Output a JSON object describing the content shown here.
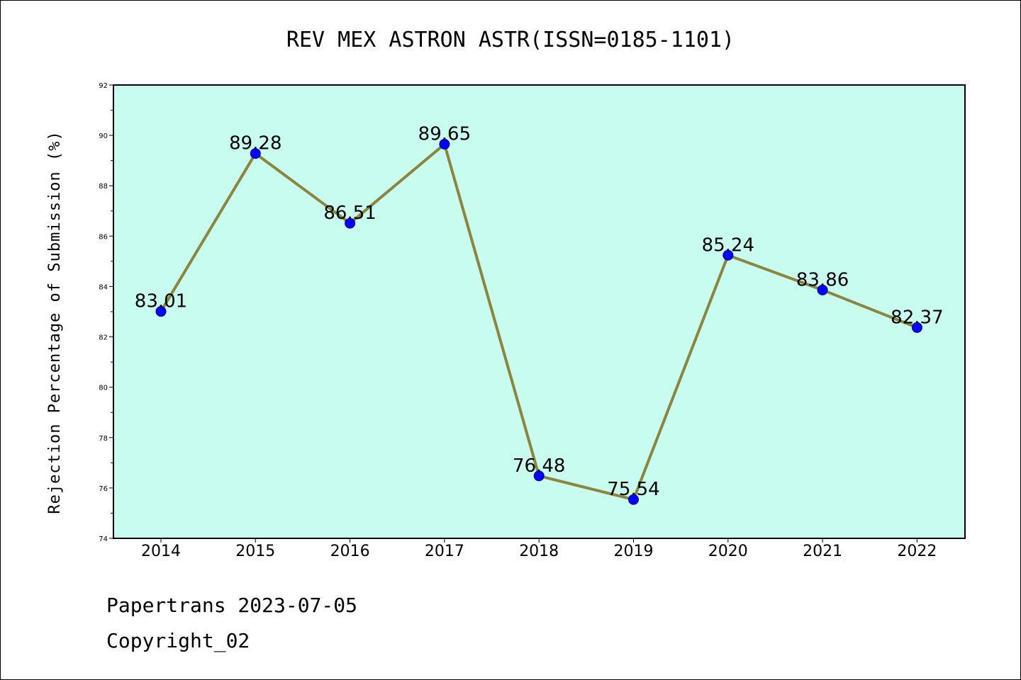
{
  "chart_data": {
    "type": "line",
    "title": "REV MEX ASTRON ASTR(ISSN=0185-1101)",
    "xlabel": "",
    "ylabel": "Rejection Percentage of Submission (%)",
    "categories": [
      "2014",
      "2015",
      "2016",
      "2017",
      "2018",
      "2019",
      "2020",
      "2021",
      "2022"
    ],
    "values": [
      83.01,
      89.28,
      86.51,
      89.65,
      76.48,
      75.54,
      85.24,
      83.86,
      82.37
    ],
    "data_labels": [
      "83.01",
      "89.28",
      "86.51",
      "89.65",
      "76.48",
      "75.54",
      "85.24",
      "83.86",
      "82.37"
    ],
    "ylim": [
      74,
      92
    ],
    "yticks": [
      74,
      76,
      78,
      80,
      82,
      84,
      86,
      88,
      90,
      92
    ],
    "grid": false,
    "colors": {
      "plot_background": "#c8fcee",
      "line": "#8b8540",
      "marker": "#0000ff"
    }
  },
  "footer": {
    "line1": "Papertrans 2023-07-05",
    "line2": "Copyright_02"
  }
}
